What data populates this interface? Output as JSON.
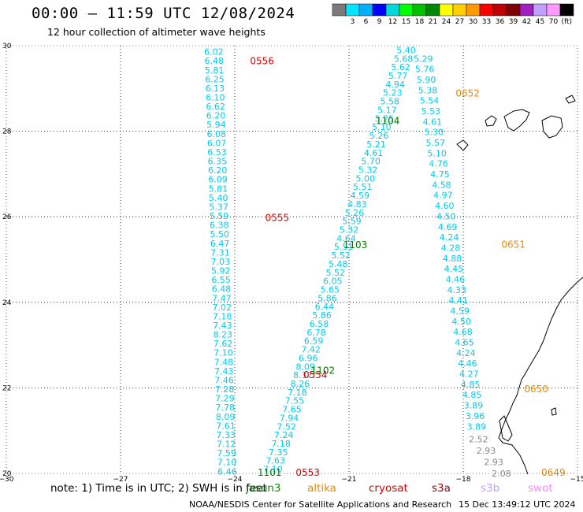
{
  "header": {
    "title": "00:00 – 11:59 UTC 12/08/2024",
    "subtitle": "12 hour collection of altimeter wave heights"
  },
  "colorbar": {
    "unit_label": "(ft)",
    "entries": [
      {
        "color": "#7a7a7a",
        "label": ""
      },
      {
        "color": "#00e5ff",
        "label": "3"
      },
      {
        "color": "#00b0ff",
        "label": "6"
      },
      {
        "color": "#0000ff",
        "label": "9"
      },
      {
        "color": "#00d8d8",
        "label": "12"
      },
      {
        "color": "#00ff00",
        "label": "15"
      },
      {
        "color": "#00c000",
        "label": "18"
      },
      {
        "color": "#008800",
        "label": "21"
      },
      {
        "color": "#ffff00",
        "label": "24"
      },
      {
        "color": "#ffd000",
        "label": "27"
      },
      {
        "color": "#ff9900",
        "label": "30"
      },
      {
        "color": "#ff0000",
        "label": "33"
      },
      {
        "color": "#c00000",
        "label": "36"
      },
      {
        "color": "#800000",
        "label": "39"
      },
      {
        "color": "#a020c0",
        "label": "42"
      },
      {
        "color": "#c0a0ff",
        "label": "45"
      },
      {
        "color": "#ff99ff",
        "label": "70"
      },
      {
        "color": "#000000",
        "label": ""
      }
    ]
  },
  "map": {
    "lon_range": [
      -30,
      -15
    ],
    "lat_range": [
      20,
      30
    ],
    "lon_ticks": [
      {
        "value": -30,
        "label": "−30"
      },
      {
        "value": -27,
        "label": "−27"
      },
      {
        "value": -24,
        "label": "−24"
      },
      {
        "value": -21,
        "label": "−21"
      },
      {
        "value": -18,
        "label": "−18"
      },
      {
        "value": -15,
        "label": "−15"
      }
    ],
    "lat_ticks": [
      {
        "value": 20,
        "label": "20"
      },
      {
        "value": 22,
        "label": "22"
      },
      {
        "value": 24,
        "label": "24"
      },
      {
        "value": 26,
        "label": "26"
      },
      {
        "value": 28,
        "label": "28"
      },
      {
        "value": 30,
        "label": "30"
      }
    ],
    "grid_lons": [
      -27,
      -24,
      -21,
      -18
    ],
    "grid_lats": [
      22,
      24,
      26,
      28
    ],
    "track_color": "#00ccee",
    "tracks": [
      {
        "name": "track-a",
        "values": [
          "6.02",
          "6.48",
          "5.81",
          "6.25",
          "6.13",
          "6.10",
          "6.62",
          "6.20",
          "5.94",
          "6.08",
          "6.07",
          "6.53",
          "6.35",
          "6.20",
          "6.09",
          "5.81",
          "5.40",
          "5.37",
          "5.59",
          "6.38",
          "5.50",
          "6.47",
          "7.31",
          "7.03",
          "5.92",
          "6.55",
          "6.48",
          "7.47",
          "7.02",
          "7.18",
          "7.43",
          "8.23",
          "7.62",
          "7.10",
          "7.48",
          "7.43",
          "7.46",
          "7.28",
          "7.29",
          "7.78",
          "8.09",
          "7.61",
          "7.33",
          "7.12",
          "7.59",
          "7.10",
          "6.46"
        ],
        "lon_start": -24.55,
        "lat_start": 29.86,
        "lon_end": -24.2,
        "lat_end": 20.05
      },
      {
        "name": "track-b",
        "values": [
          "5.40",
          "5.68",
          "5.62",
          "5.77",
          "4.94",
          "5.23",
          "5.58",
          "5.17",
          "5.25",
          "5.10",
          "5.26",
          "5.21",
          "4.61",
          "5.70",
          "5.32",
          "5.00",
          "5.51",
          "4.59",
          "4.83",
          "5.26",
          "5.59",
          "5.32",
          "4.64",
          "5.51",
          "5.52",
          "5.48",
          "5.52",
          "6.05",
          "5.65",
          "5.86",
          "6.44",
          "5.86",
          "6.58",
          "6.78",
          "6.59",
          "7.42",
          "6.96",
          "8.09",
          "8.37",
          "8.26",
          "7.18",
          "7.55",
          "7.65",
          "7.94",
          "7.52",
          "7.24",
          "7.18",
          "7.35",
          "7.63",
          "7.10"
        ],
        "lon_start": -19.5,
        "lat_start": 29.9,
        "lon_end": -23.0,
        "lat_end": 20.1
      },
      {
        "name": "track-c",
        "values": [
          "5.29",
          "5.76",
          "5.90",
          "5.38",
          "5.54",
          "5.53",
          "4.61",
          "5.30",
          "5.57",
          "5.10",
          "4.76",
          "4.75",
          "4.58",
          "4.97",
          "4.60",
          "4.50",
          "4.69",
          "4.24",
          "4.28",
          "4.88",
          "4.45",
          "4.46",
          "4.33",
          "4.41",
          "4.59",
          "4.50",
          "4.68",
          "4.65",
          "4.24",
          "4.46",
          "4.27",
          "4.85",
          "4.85",
          "3.89",
          "3.96",
          "3.89"
        ],
        "lon_start": -19.05,
        "lat_start": 29.7,
        "lon_end": -17.65,
        "lat_end": 21.1
      },
      {
        "name": "track-d",
        "values": [
          "2.52",
          "2.93",
          "2.93",
          "2.08"
        ],
        "color": "#888888",
        "lon_start": -17.6,
        "lat_start": 20.8,
        "lon_end": -17.0,
        "lat_end": 20.0
      }
    ],
    "time_labels": [
      {
        "text": "0556",
        "color": "#dd0000",
        "lon": -23.6,
        "lat": 29.64
      },
      {
        "text": "0555",
        "color": "#dd0000",
        "lon": -23.2,
        "lat": 25.98
      },
      {
        "text": "0554",
        "color": "#dd0000",
        "lon": -22.2,
        "lat": 22.3
      },
      {
        "text": "0553",
        "color": "#dd0000",
        "lon": -22.4,
        "lat": 20.02
      },
      {
        "text": "1104",
        "color": "#007700",
        "lon": -20.3,
        "lat": 28.24
      },
      {
        "text": "1103",
        "color": "#007700",
        "lon": -21.15,
        "lat": 25.34
      },
      {
        "text": "1102",
        "color": "#007700",
        "lon": -22.0,
        "lat": 22.4
      },
      {
        "text": "1101",
        "color": "#007700",
        "lon": -23.4,
        "lat": 20.02
      },
      {
        "text": "0652",
        "color": "#ee8800",
        "lon": -18.2,
        "lat": 28.89
      },
      {
        "text": "0651",
        "color": "#ee8800",
        "lon": -17.0,
        "lat": 25.35
      },
      {
        "text": "0650",
        "color": "#ee8800",
        "lon": -16.4,
        "lat": 21.97
      },
      {
        "text": "0649",
        "color": "#ee8800",
        "lon": -15.95,
        "lat": 20.02
      }
    ]
  },
  "legend": {
    "note": "note:  1) Time is in UTC;  2) SWH is in feet",
    "satellites": [
      {
        "name": "jason3",
        "color": "#118811"
      },
      {
        "name": "altika",
        "color": "#ee8800"
      },
      {
        "name": "cryosat",
        "color": "#dd0000"
      },
      {
        "name": "s3a",
        "color": "#990000"
      },
      {
        "name": "s3b",
        "color": "#c0a0ff"
      },
      {
        "name": "swot",
        "color": "#ff88ff"
      }
    ]
  },
  "footer": {
    "org": "NOAA/NESDIS Center for Satellite Applications and Research",
    "generated": "15 Dec 13:49:12 UTC 2024"
  }
}
